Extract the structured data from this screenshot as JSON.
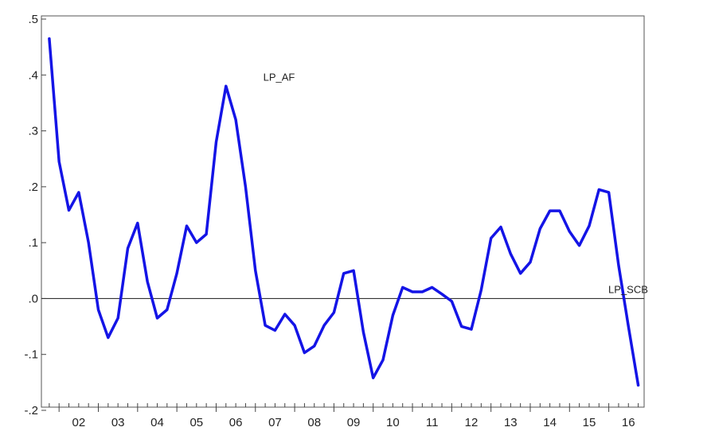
{
  "chart_data": {
    "type": "line",
    "title": "",
    "xlabel": "",
    "ylabel": "",
    "ylim": [
      -0.2,
      0.5
    ],
    "xlim": [
      2001.55,
      2016.9
    ],
    "grid": false,
    "legend": "none",
    "y_ticks": [
      {
        "value": 0.5,
        "label": ".5"
      },
      {
        "value": 0.4,
        "label": ".4"
      },
      {
        "value": 0.3,
        "label": ".3"
      },
      {
        "value": 0.2,
        "label": ".2"
      },
      {
        "value": 0.1,
        "label": ".1"
      },
      {
        "value": 0.0,
        "label": ".0"
      },
      {
        "value": -0.1,
        "label": "-.1"
      },
      {
        "value": -0.2,
        "label": "-.2"
      }
    ],
    "x_year_labels": [
      {
        "value": 2002.5,
        "label": "02"
      },
      {
        "value": 2003.5,
        "label": "03"
      },
      {
        "value": 2004.5,
        "label": "04"
      },
      {
        "value": 2005.5,
        "label": "05"
      },
      {
        "value": 2006.5,
        "label": "06"
      },
      {
        "value": 2007.5,
        "label": "07"
      },
      {
        "value": 2008.5,
        "label": "08"
      },
      {
        "value": 2009.5,
        "label": "09"
      },
      {
        "value": 2010.5,
        "label": "10"
      },
      {
        "value": 2011.5,
        "label": "11"
      },
      {
        "value": 2012.5,
        "label": "12"
      },
      {
        "value": 2013.5,
        "label": "13"
      },
      {
        "value": 2014.5,
        "label": "14"
      },
      {
        "value": 2015.5,
        "label": "15"
      },
      {
        "value": 2016.5,
        "label": "16"
      }
    ],
    "reference_line": {
      "y": 0.0,
      "color": "#333333"
    },
    "annotations": [
      {
        "text": "LP_AF",
        "x": 2007.2,
        "y": 0.39
      },
      {
        "text": "LP_SCB",
        "x": 2017.0,
        "y": 0.01
      }
    ],
    "series": [
      {
        "color": "#1414e6",
        "x": [
          2001.75,
          2002.0,
          2002.25,
          2002.5,
          2002.75,
          2003.0,
          2003.25,
          2003.5,
          2003.75,
          2004.0,
          2004.25,
          2004.5,
          2004.75,
          2005.0,
          2005.25,
          2005.5,
          2005.75,
          2006.0,
          2006.25,
          2006.5,
          2006.75,
          2007.0,
          2007.25,
          2007.5,
          2007.75,
          2008.0,
          2008.25,
          2008.5,
          2008.75,
          2009.0,
          2009.25,
          2009.5,
          2009.75,
          2010.0,
          2010.25,
          2010.5,
          2010.75,
          2011.0,
          2011.25,
          2011.5,
          2011.75,
          2012.0,
          2012.25,
          2012.5,
          2012.75,
          2013.0,
          2013.25,
          2013.5,
          2013.75,
          2014.0,
          2014.25,
          2014.5,
          2014.75,
          2015.0,
          2015.25,
          2015.5,
          2015.75,
          2016.0,
          2016.25,
          2016.5,
          2016.75
        ],
        "values": [
          0.465,
          0.245,
          0.158,
          0.19,
          0.1,
          -0.02,
          -0.07,
          -0.035,
          0.09,
          0.135,
          0.03,
          -0.035,
          -0.02,
          0.045,
          0.13,
          0.1,
          0.115,
          0.28,
          0.38,
          0.32,
          0.2,
          0.05,
          -0.048,
          -0.057,
          -0.028,
          -0.048,
          -0.097,
          -0.085,
          -0.048,
          -0.025,
          0.045,
          0.05,
          -0.06,
          -0.142,
          -0.11,
          -0.03,
          0.02,
          0.012,
          0.012,
          0.02,
          0.008,
          -0.005,
          -0.05,
          -0.055,
          0.015,
          0.108,
          0.128,
          0.08,
          0.045,
          0.065,
          0.125,
          0.157,
          0.157,
          0.12,
          0.095,
          0.13,
          0.195,
          0.19,
          0.06,
          -0.05,
          -0.155
        ]
      }
    ]
  }
}
